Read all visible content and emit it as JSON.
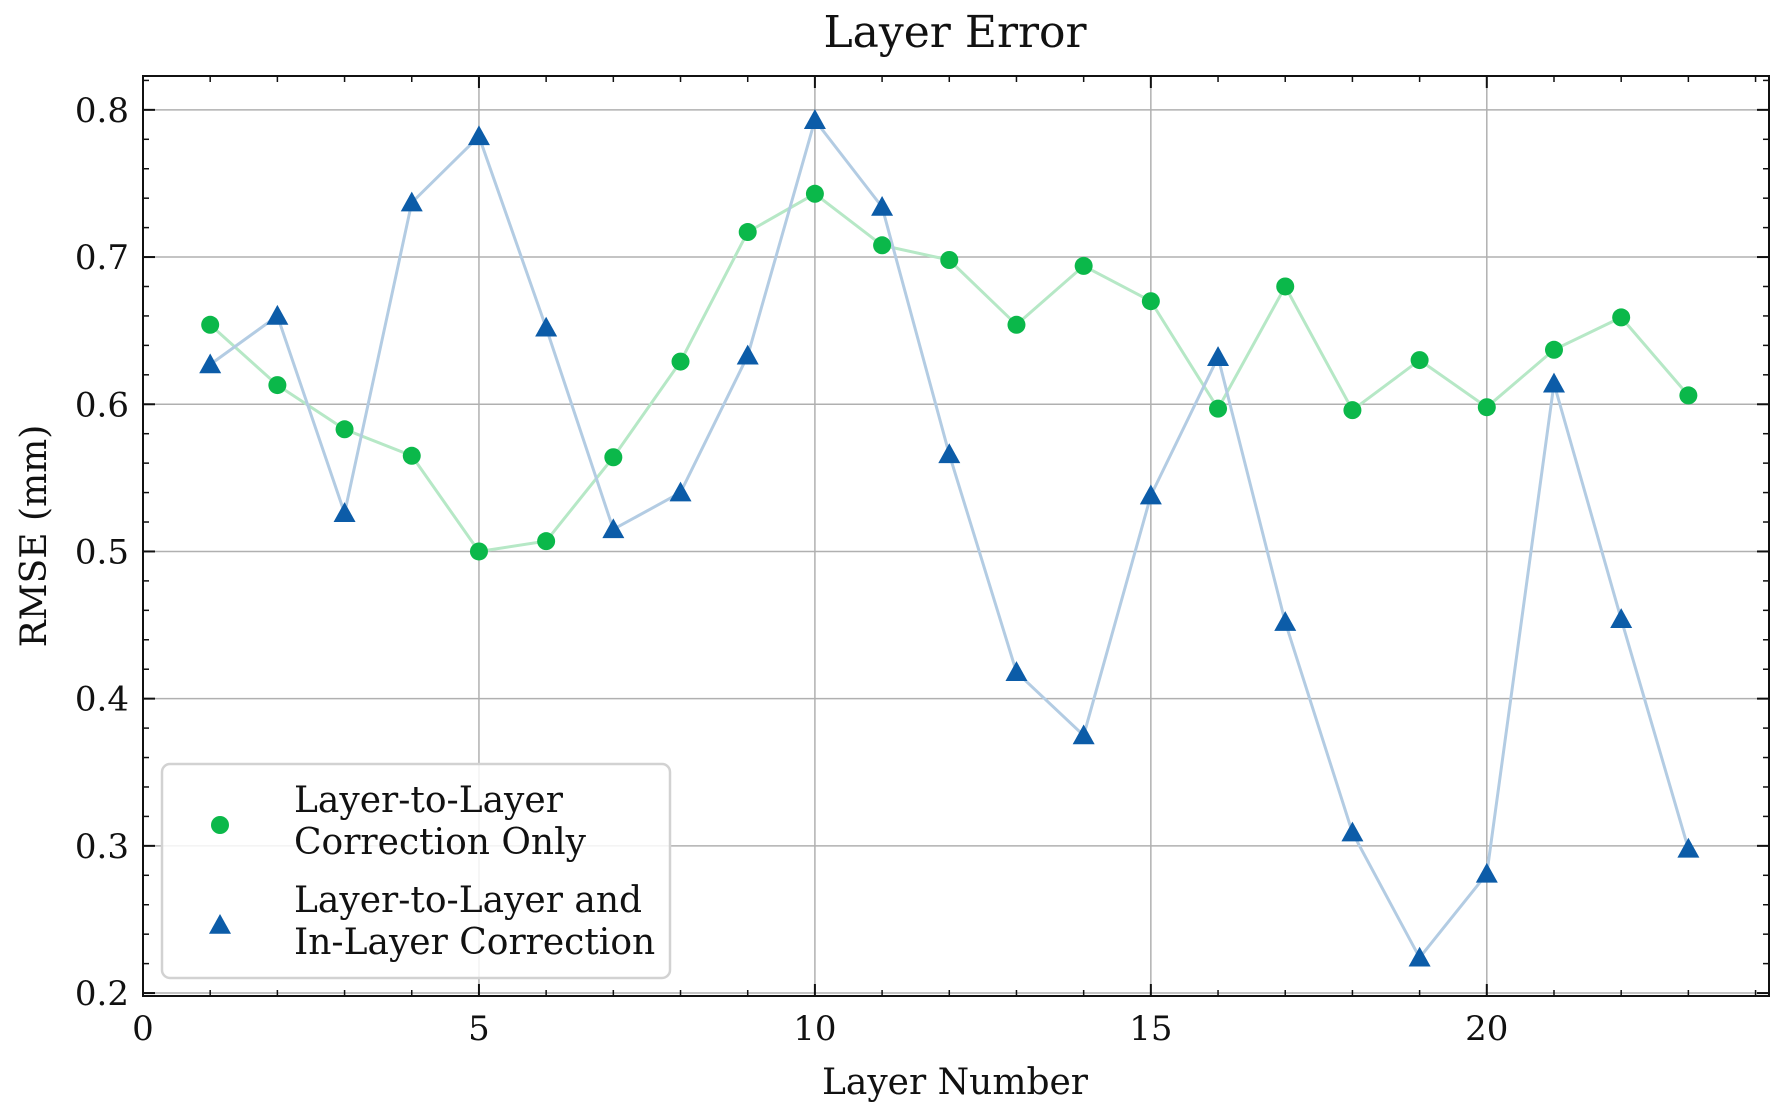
{
  "chart_data": {
    "type": "line",
    "title": "Layer Error",
    "xlabel": "Layer Number",
    "ylabel": "RMSE (mm)",
    "xlim": [
      0,
      24.2
    ],
    "ylim": [
      0.198,
      0.823
    ],
    "x_ticks": [
      0,
      5,
      10,
      15,
      20
    ],
    "y_ticks": [
      0.2,
      0.3,
      0.4,
      0.5,
      0.6,
      0.7,
      0.8
    ],
    "grid": true,
    "legend_position": "lower-left",
    "x": [
      1,
      2,
      3,
      4,
      5,
      6,
      7,
      8,
      9,
      10,
      11,
      12,
      13,
      14,
      15,
      16,
      17,
      18,
      19,
      20,
      21,
      22,
      23
    ],
    "series": [
      {
        "name": "Layer-to-Layer\nCorrection Only",
        "marker": "circle",
        "color": "#0bb84a",
        "line_color": "#b6e8c6",
        "values": [
          0.654,
          0.613,
          0.583,
          0.565,
          0.5,
          0.507,
          0.564,
          0.629,
          0.717,
          0.743,
          0.708,
          0.698,
          0.654,
          0.694,
          0.67,
          0.597,
          0.68,
          0.596,
          0.63,
          0.598,
          0.637,
          0.659,
          0.606
        ]
      },
      {
        "name": "Layer-to-Layer and\nIn-Layer Correction",
        "marker": "triangle",
        "color": "#0c5ca8",
        "line_color": "#b3cce3",
        "values": [
          0.627,
          0.66,
          0.526,
          0.737,
          0.782,
          0.652,
          0.515,
          0.54,
          0.633,
          0.793,
          0.734,
          0.566,
          0.418,
          0.375,
          0.538,
          0.632,
          0.452,
          0.309,
          0.224,
          0.281,
          0.614,
          0.454,
          0.298
        ]
      }
    ]
  }
}
